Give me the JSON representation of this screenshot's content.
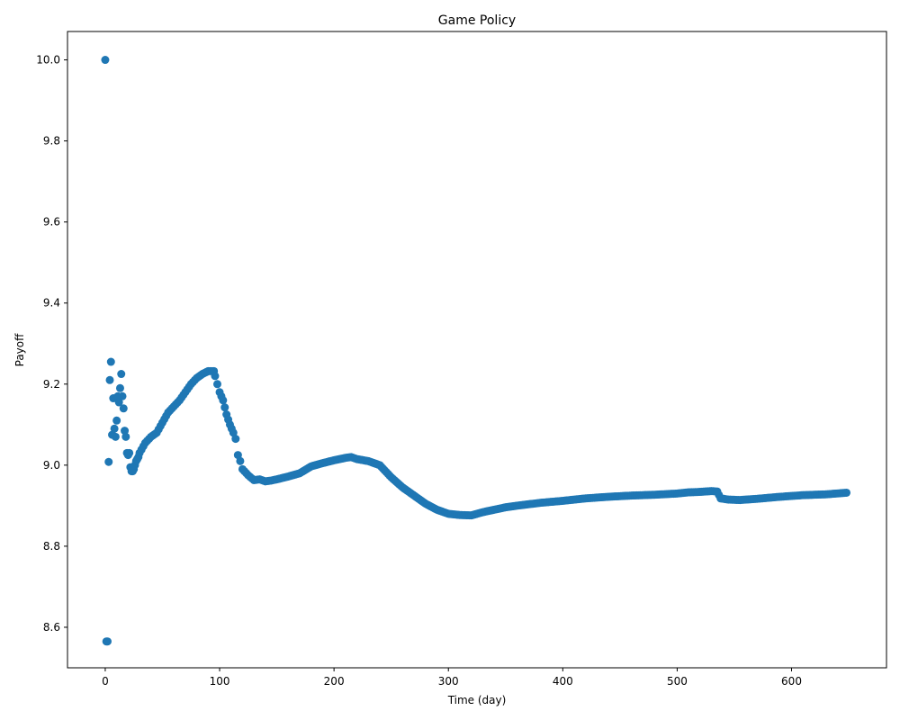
{
  "chart_data": {
    "type": "scatter",
    "title": "Game Policy",
    "xlabel": "Time (day)",
    "ylabel": "Payoff",
    "xlim": [
      -33,
      683
    ],
    "ylim": [
      8.5,
      10.07
    ],
    "xticks": [
      0,
      100,
      200,
      300,
      400,
      500,
      600
    ],
    "yticks": [
      8.6,
      8.8,
      9.0,
      9.2,
      9.4,
      9.6,
      9.8,
      10.0
    ],
    "ytick_labels": [
      "8.6",
      "8.8",
      "9.0",
      "9.2",
      "9.4",
      "9.6",
      "9.8",
      "10.0"
    ],
    "grid": false,
    "marker_color": "#1f77b4",
    "series": [
      {
        "x": [
          0,
          1,
          2,
          3,
          4,
          5,
          6,
          7,
          8,
          9,
          10,
          11,
          12,
          13,
          14,
          15,
          16,
          17,
          18,
          19,
          20,
          21,
          22,
          23,
          24,
          25,
          26,
          27,
          28,
          29,
          30,
          35,
          40,
          45,
          50,
          55,
          60,
          65,
          70,
          75,
          80,
          85,
          90,
          95,
          96,
          98,
          100,
          103,
          106,
          109,
          112,
          114,
          116,
          118,
          120,
          125,
          130,
          135,
          140,
          145,
          150,
          160,
          170,
          180,
          190,
          200,
          210,
          215,
          220,
          230,
          240,
          250,
          260,
          270,
          280,
          290,
          300,
          310,
          320,
          330,
          340,
          350,
          360,
          380,
          400,
          420,
          440,
          460,
          480,
          500,
          510,
          520,
          530,
          535,
          538,
          545,
          555,
          570,
          590,
          610,
          630,
          648
        ],
        "y": [
          10.0,
          8.565,
          8.565,
          9.008,
          9.21,
          9.255,
          9.075,
          9.165,
          9.09,
          9.07,
          9.11,
          9.17,
          9.155,
          9.19,
          9.225,
          9.17,
          9.14,
          9.085,
          9.07,
          9.03,
          9.025,
          9.03,
          8.995,
          8.985,
          8.985,
          8.99,
          9.0,
          9.01,
          9.015,
          9.02,
          9.03,
          9.055,
          9.07,
          9.08,
          9.105,
          9.13,
          9.145,
          9.16,
          9.18,
          9.2,
          9.215,
          9.225,
          9.232,
          9.232,
          9.22,
          9.2,
          9.18,
          9.16,
          9.125,
          9.1,
          9.08,
          9.065,
          9.025,
          9.01,
          8.99,
          8.975,
          8.963,
          8.965,
          8.96,
          8.962,
          8.965,
          8.972,
          8.98,
          8.997,
          9.005,
          9.012,
          9.018,
          9.02,
          9.015,
          9.01,
          9.0,
          8.97,
          8.945,
          8.925,
          8.905,
          8.89,
          8.88,
          8.877,
          8.876,
          8.884,
          8.89,
          8.896,
          8.9,
          8.907,
          8.912,
          8.918,
          8.922,
          8.925,
          8.927,
          8.93,
          8.933,
          8.934,
          8.936,
          8.935,
          8.918,
          8.915,
          8.914,
          8.917,
          8.922,
          8.926,
          8.928,
          8.932
        ]
      }
    ]
  }
}
